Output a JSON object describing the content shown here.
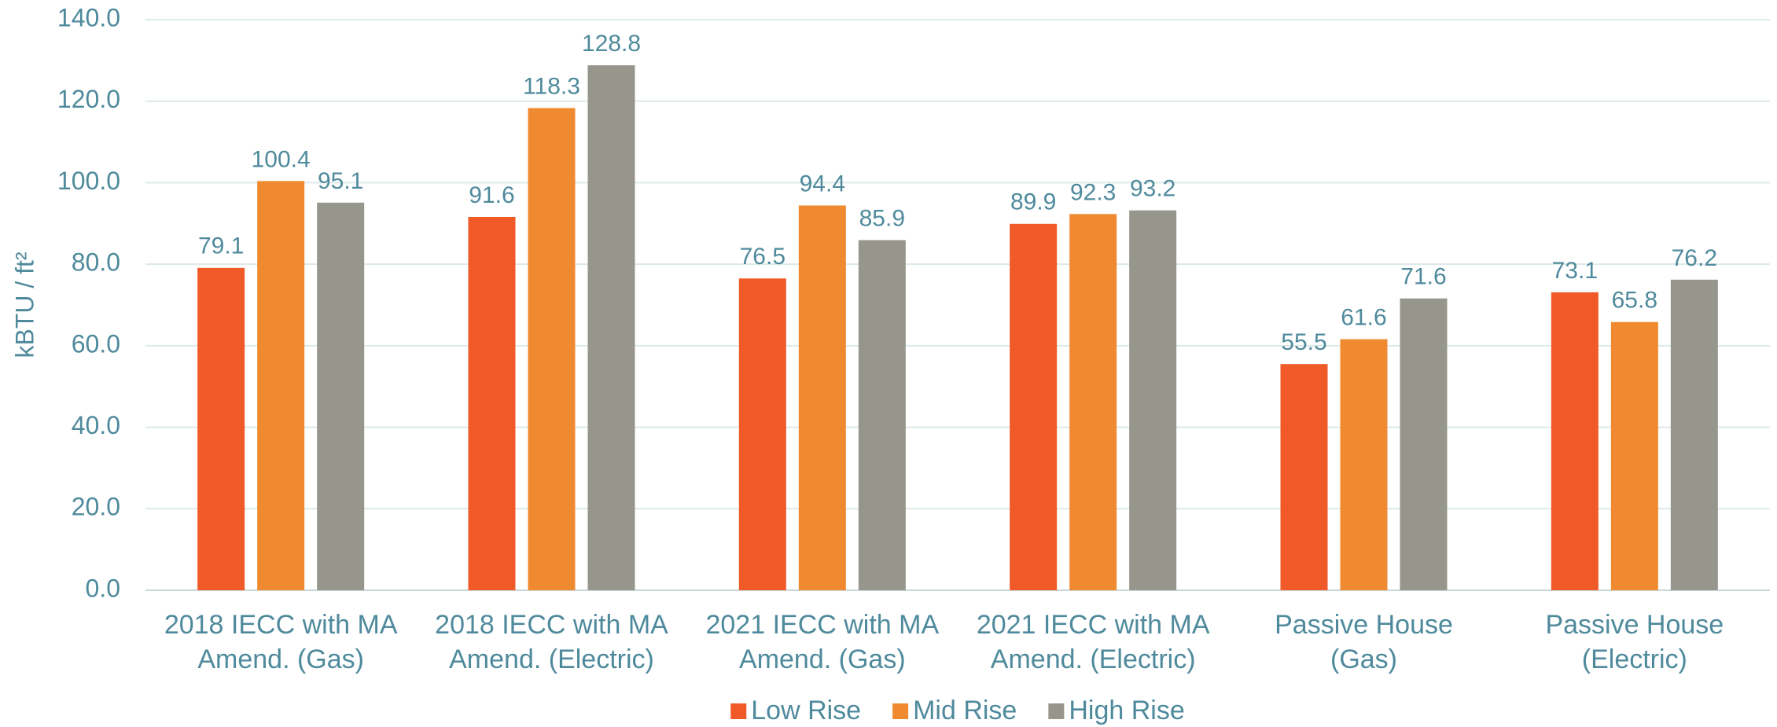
{
  "chart_data": {
    "type": "bar",
    "ylabel": "kBTU / ft²",
    "categories": [
      [
        "2018 IECC with MA",
        "Amend. (Gas)"
      ],
      [
        "2018 IECC with MA",
        "Amend. (Electric)"
      ],
      [
        "2021 IECC with MA",
        "Amend. (Gas)"
      ],
      [
        "2021 IECC with MA",
        "Amend. (Electric)"
      ],
      [
        "Passive House",
        "(Gas)"
      ],
      [
        "Passive House",
        "(Electric)"
      ]
    ],
    "series": [
      {
        "name": "Low Rise",
        "color": "#f05a28",
        "values": [
          79.1,
          91.6,
          76.5,
          89.9,
          55.5,
          73.1
        ]
      },
      {
        "name": "Mid Rise",
        "color": "#f08a30",
        "values": [
          100.4,
          118.3,
          94.4,
          92.3,
          61.6,
          65.8
        ]
      },
      {
        "name": "High Rise",
        "color": "#96968c",
        "values": [
          95.1,
          128.8,
          85.9,
          93.2,
          71.6,
          76.2
        ]
      }
    ],
    "ylim": [
      0,
      140
    ],
    "yticks": [
      {
        "value": 0,
        "label": "0.0"
      },
      {
        "value": 20,
        "label": "20.0"
      },
      {
        "value": 40,
        "label": "40.0"
      },
      {
        "value": 60,
        "label": "60.0"
      },
      {
        "value": 80,
        "label": "80.0"
      },
      {
        "value": 100,
        "label": "100.0"
      },
      {
        "value": 120,
        "label": "120.0"
      },
      {
        "value": 140,
        "label": "140.0"
      }
    ],
    "grid": true,
    "legend": "bottom"
  }
}
